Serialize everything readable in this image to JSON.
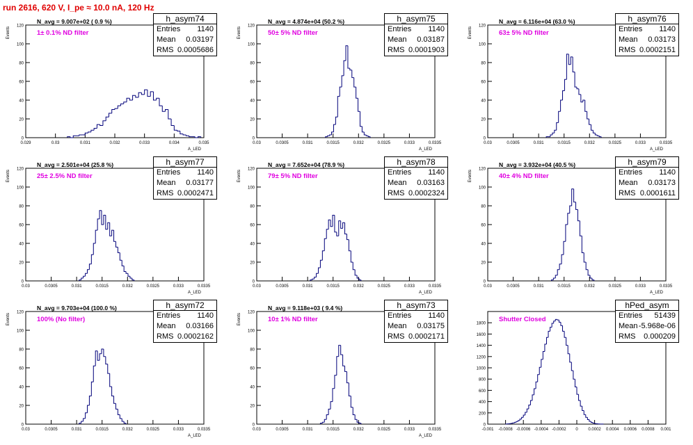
{
  "title": "run 2616,   620 V, I_pe ≈ 10.0 nA, 120 Hz",
  "colors": {
    "histogram": "#00007a",
    "title": "#e00000",
    "filter_label": "#e000e0"
  },
  "chart_data": [
    {
      "type": "bar",
      "hist_name": "h_asym74",
      "navg_text": "N_avg = 9.007e+02 ( 0.9 %)",
      "filter_text": "1± 0.1% ND filter",
      "stats": {
        "entries": "1140",
        "mean": "0.03197",
        "rms": "0.0005686"
      },
      "ylabel": "Events",
      "xlabel": "A_LED",
      "xlim": [
        0.029,
        0.035
      ],
      "ylim": [
        0,
        120
      ],
      "x_ticks": [
        "0.029",
        "0.03",
        "0.031",
        "0.032",
        "0.033",
        "0.034",
        "0.035"
      ],
      "y_ticks": [
        "0",
        "20",
        "40",
        "60",
        "80",
        "100",
        "120"
      ],
      "series": [
        {
          "bin_start": 0.0304,
          "bin_width": 0.0001,
          "values": [
            1,
            0,
            2,
            2,
            3,
            3,
            5,
            6,
            8,
            10,
            14,
            13,
            18,
            22,
            26,
            30,
            31,
            34,
            36,
            38,
            42,
            40,
            45,
            43,
            48,
            46,
            51,
            44,
            49,
            40,
            42,
            34,
            28,
            30,
            20,
            13,
            8,
            7,
            4,
            3,
            2,
            1,
            1,
            0,
            1
          ]
        }
      ]
    },
    {
      "type": "bar",
      "hist_name": "h_asym75",
      "navg_text": "N_avg = 4.874e+04 (50.2 %)",
      "filter_text": "50± 5% ND filter",
      "stats": {
        "entries": "1140",
        "mean": "0.03187",
        "rms": "0.0001903"
      },
      "ylabel": "Events",
      "xlabel": "A_LED",
      "xlim": [
        0.03,
        0.0335
      ],
      "ylim": [
        0,
        120
      ],
      "x_ticks": [
        "0.03",
        "0.0305",
        "0.031",
        "0.0315",
        "0.032",
        "0.0325",
        "0.033",
        "0.0335"
      ],
      "y_ticks": [
        "0",
        "20",
        "40",
        "60",
        "80",
        "100",
        "120"
      ],
      "series": [
        {
          "bin_start": 0.03135,
          "bin_width": 4e-05,
          "values": [
            1,
            2,
            3,
            6,
            14,
            22,
            44,
            54,
            66,
            82,
            98,
            74,
            72,
            64,
            54,
            42,
            28,
            12,
            6,
            3,
            2,
            1
          ]
        }
      ]
    },
    {
      "type": "bar",
      "hist_name": "h_asym76",
      "navg_text": "N_avg = 6.116e+04 (63.0 %)",
      "filter_text": "63± 5% ND filter",
      "stats": {
        "entries": "1140",
        "mean": "0.03173",
        "rms": "0.0002151"
      },
      "ylabel": "Events",
      "xlabel": "A_LED",
      "xlim": [
        0.03,
        0.0335
      ],
      "ylim": [
        0,
        120
      ],
      "x_ticks": [
        "0.03",
        "0.0305",
        "0.031",
        "0.0315",
        "0.032",
        "0.0325",
        "0.033",
        "0.0335"
      ],
      "y_ticks": [
        "0",
        "20",
        "40",
        "60",
        "80",
        "100",
        "120"
      ],
      "series": [
        {
          "bin_start": 0.03115,
          "bin_width": 4e-05,
          "values": [
            1,
            1,
            3,
            5,
            8,
            16,
            28,
            40,
            50,
            62,
            89,
            78,
            86,
            70,
            54,
            52,
            46,
            38,
            40,
            28,
            20,
            14,
            8,
            5,
            3,
            2,
            1
          ]
        }
      ]
    },
    {
      "type": "bar",
      "hist_name": "h_asym77",
      "navg_text": "N_avg = 2.501e+04 (25.8 %)",
      "filter_text": "25± 2.5% ND filter",
      "stats": {
        "entries": "1140",
        "mean": "0.03177",
        "rms": "0.0002471"
      },
      "ylabel": "Events",
      "xlabel": "A_LED",
      "xlim": [
        0.03,
        0.0335
      ],
      "ylim": [
        0,
        120
      ],
      "x_ticks": [
        "0.03",
        "0.0305",
        "0.031",
        "0.0315",
        "0.032",
        "0.0325",
        "0.033",
        "0.0335"
      ],
      "y_ticks": [
        "0",
        "20",
        "40",
        "60",
        "80",
        "100",
        "120"
      ],
      "series": [
        {
          "bin_start": 0.03105,
          "bin_width": 4e-05,
          "values": [
            1,
            3,
            5,
            8,
            12,
            18,
            28,
            40,
            54,
            66,
            75,
            60,
            70,
            55,
            62,
            48,
            54,
            42,
            36,
            30,
            22,
            16,
            10,
            8,
            5,
            3,
            1
          ]
        }
      ]
    },
    {
      "type": "bar",
      "hist_name": "h_asym78",
      "navg_text": "N_avg = 7.652e+04 (78.9 %)",
      "filter_text": "79± 5% ND filter",
      "stats": {
        "entries": "1140",
        "mean": "0.03163",
        "rms": "0.0002324"
      },
      "ylabel": "Events",
      "xlabel": "A_LED",
      "xlim": [
        0.03,
        0.0335
      ],
      "ylim": [
        0,
        120
      ],
      "x_ticks": [
        "0.03",
        "0.0305",
        "0.031",
        "0.0315",
        "0.032",
        "0.0325",
        "0.033",
        "0.0335"
      ],
      "y_ticks": [
        "0",
        "20",
        "40",
        "60",
        "80",
        "100",
        "120"
      ],
      "series": [
        {
          "bin_start": 0.03105,
          "bin_width": 4e-05,
          "values": [
            1,
            2,
            4,
            8,
            14,
            22,
            32,
            45,
            55,
            65,
            58,
            70,
            52,
            48,
            64,
            56,
            62,
            50,
            44,
            32,
            20,
            12,
            6,
            3,
            1
          ]
        }
      ]
    },
    {
      "type": "bar",
      "hist_name": "h_asym79",
      "navg_text": "N_avg = 3.932e+04 (40.5 %)",
      "filter_text": "40± 4% ND filter",
      "stats": {
        "entries": "1140",
        "mean": "0.03173",
        "rms": "0.0001611"
      },
      "ylabel": "Events",
      "xlabel": "A_LED",
      "xlim": [
        0.03,
        0.0335
      ],
      "ylim": [
        0,
        120
      ],
      "x_ticks": [
        "0.03",
        "0.0305",
        "0.031",
        "0.0315",
        "0.032",
        "0.0325",
        "0.033",
        "0.0335"
      ],
      "y_ticks": [
        "0",
        "20",
        "40",
        "60",
        "80",
        "100",
        "120"
      ],
      "series": [
        {
          "bin_start": 0.03125,
          "bin_width": 4e-05,
          "values": [
            1,
            3,
            6,
            12,
            18,
            28,
            42,
            60,
            72,
            80,
            98,
            84,
            76,
            64,
            48,
            30,
            20,
            12,
            6,
            3,
            1
          ]
        }
      ]
    },
    {
      "type": "bar",
      "hist_name": "h_asym72",
      "navg_text": "N_avg = 9.703e+04 (100.0 %)",
      "filter_text": "100% (No filter)",
      "stats": {
        "entries": "1140",
        "mean": "0.03166",
        "rms": "0.0002162"
      },
      "ylabel": "Events",
      "xlabel": "A_LED",
      "xlim": [
        0.03,
        0.0335
      ],
      "ylim": [
        0,
        120
      ],
      "x_ticks": [
        "0.03",
        "0.0305",
        "0.031",
        "0.0315",
        "0.032",
        "0.0325",
        "0.033",
        "0.0335"
      ],
      "y_ticks": [
        "0",
        "20",
        "40",
        "60",
        "80",
        "100",
        "120"
      ],
      "series": [
        {
          "bin_start": 0.03105,
          "bin_width": 4e-05,
          "values": [
            1,
            3,
            6,
            12,
            20,
            30,
            45,
            62,
            78,
            68,
            75,
            80,
            72,
            64,
            54,
            40,
            30,
            22,
            16,
            10,
            6,
            3,
            1
          ]
        }
      ]
    },
    {
      "type": "bar",
      "hist_name": "h_asym73",
      "navg_text": "N_avg = 9.118e+03 ( 9.4 %)",
      "filter_text": "10± 1% ND filter",
      "stats": {
        "entries": "1140",
        "mean": "0.03175",
        "rms": "0.0002171"
      },
      "ylabel": "Events",
      "xlabel": "A_LED",
      "xlim": [
        0.03,
        0.0335
      ],
      "ylim": [
        0,
        120
      ],
      "x_ticks": [
        "0.03",
        "0.0305",
        "0.031",
        "0.0315",
        "0.032",
        "0.0325",
        "0.033",
        "0.0335"
      ],
      "y_ticks": [
        "0",
        "20",
        "40",
        "60",
        "80",
        "100",
        "120"
      ],
      "series": [
        {
          "bin_start": 0.03125,
          "bin_width": 4e-05,
          "values": [
            1,
            2,
            5,
            10,
            16,
            24,
            38,
            52,
            72,
            84,
            74,
            62,
            56,
            44,
            30,
            18,
            10,
            5,
            2,
            1
          ]
        }
      ]
    },
    {
      "type": "bar",
      "hist_name": "hPed_asym",
      "navg_text": "",
      "filter_text": "Shutter Closed",
      "stats": {
        "entries": "51439",
        "mean": "-5.968e-06",
        "rms": "0.000209"
      },
      "ylabel": "",
      "xlabel": "",
      "xlim": [
        -0.001,
        0.001
      ],
      "ylim": [
        0,
        2000
      ],
      "x_ticks": [
        "-0.001",
        "-0.0008",
        "-0.0006",
        "-0.0004",
        "-0.0002",
        "0",
        "0.0002",
        "0.0004",
        "0.0006",
        "0.0008",
        "0.001"
      ],
      "y_ticks": [
        "0",
        "200",
        "400",
        "600",
        "800",
        "1000",
        "1200",
        "1400",
        "1600",
        "1800"
      ],
      "series": [
        {
          "bin_start": -0.0008,
          "bin_width": 2e-05,
          "values": [
            2,
            4,
            8,
            14,
            22,
            32,
            46,
            64,
            90,
            120,
            160,
            210,
            270,
            340,
            420,
            520,
            630,
            750,
            880,
            1010,
            1150,
            1290,
            1420,
            1540,
            1650,
            1720,
            1790,
            1830,
            1860,
            1850,
            1810,
            1750,
            1650,
            1540,
            1400,
            1250,
            1100,
            950,
            800,
            660,
            530,
            420,
            320,
            240,
            170,
            120,
            80,
            50,
            30,
            18,
            10,
            6,
            3,
            2,
            1
          ]
        }
      ]
    }
  ]
}
